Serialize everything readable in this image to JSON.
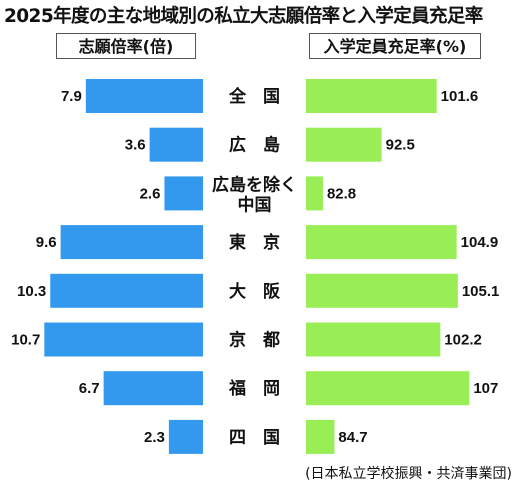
{
  "chart_data": {
    "type": "bar",
    "title": "2025年度の主な地域別の私立大志願倍率と入学定員充足率",
    "categories": [
      "全　国",
      "広　島",
      "広島を除く\n中国",
      "東　京",
      "大　阪",
      "京　都",
      "福　岡",
      "四　国"
    ],
    "series": [
      {
        "name": "志願倍率(倍)",
        "values": [
          7.9,
          3.6,
          2.6,
          9.6,
          10.3,
          10.7,
          6.7,
          2.3
        ],
        "color": "#3399ee",
        "direction": "left"
      },
      {
        "name": "入学定員充足率(%)",
        "values": [
          101.6,
          92.5,
          82.8,
          104.9,
          105.1,
          102.2,
          107,
          84.7
        ],
        "color": "#99ee55",
        "direction": "right"
      }
    ],
    "source": "(日本私立学校振興・共済事業団)",
    "grid": false
  }
}
